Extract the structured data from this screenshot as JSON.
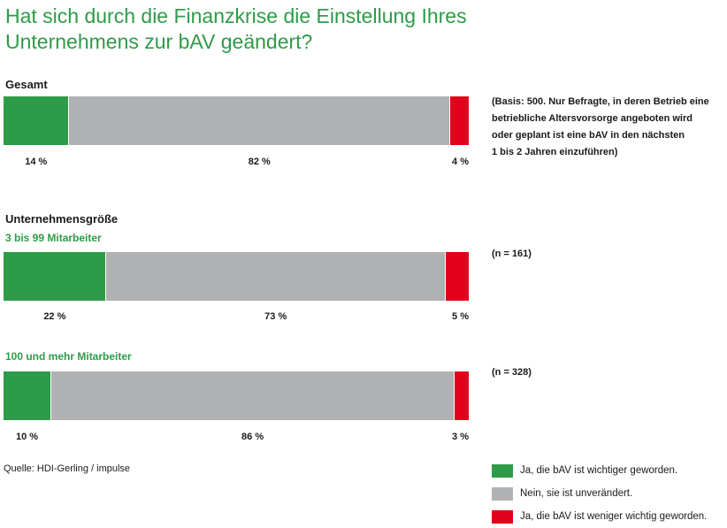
{
  "title_lines": [
    "Hat sich durch die Finanzkrise die Einstellung Ihres",
    "Unternehmens zur bAV geändert?"
  ],
  "colors": {
    "green": "#2e9b48",
    "grey": "#b0b1b3",
    "red": "#e2001a"
  },
  "sections": {
    "gesamt": "Gesamt",
    "groesse": "Unternehmensgröße"
  },
  "notes": {
    "basis": [
      "(Basis: 500. Nur Befragte, in deren Betrieb eine",
      "betriebliche Altersvorsorge angeboten wird",
      "oder geplant ist eine bAV in den nächsten",
      "1 bis 2 Jahren einzuführen)"
    ],
    "n_small": "(n = 161)",
    "n_large": "(n = 328)"
  },
  "source": "Quelle: HDI-Gerling / impulse",
  "chart_data": {
    "type": "bar",
    "orientation": "horizontal-stacked-100",
    "categories": [
      "Gesamt",
      "3 bis 99 Mitarbeiter",
      "100 und mehr Mitarbeiter"
    ],
    "series": [
      {
        "name": "Ja, die bAV ist wichtiger geworden.",
        "values": [
          14,
          22,
          10
        ],
        "labels": [
          "14 %",
          "22 %",
          "10 %"
        ],
        "color": "#2e9b48"
      },
      {
        "name": "Nein, sie ist unverändert.",
        "values": [
          82,
          73,
          86
        ],
        "labels": [
          "82 %",
          "73 %",
          "86 %"
        ],
        "color": "#b0b1b3"
      },
      {
        "name": "Ja, die bAV ist weniger wichtig geworden.",
        "values": [
          4,
          5,
          3
        ],
        "labels": [
          "4 %",
          "5 %",
          "3 %"
        ],
        "color": "#e2001a"
      }
    ]
  }
}
